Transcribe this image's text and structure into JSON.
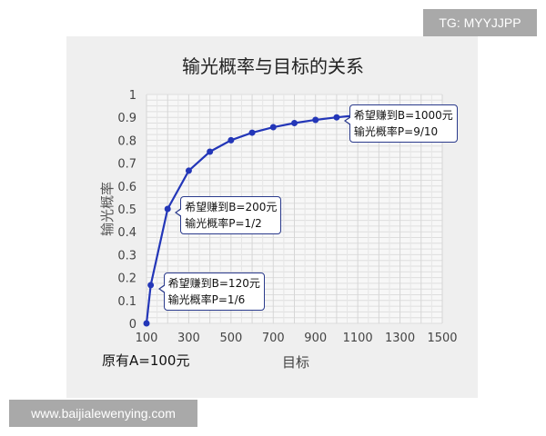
{
  "watermark_top": "TG: MYYJJPP",
  "watermark_bottom": "www.baijialewenying.com",
  "chart_data": {
    "type": "line",
    "title": "输光概率与目标的关系",
    "xlabel": "目标",
    "ylabel": "输光概率",
    "footnote": "原有A=100元",
    "xlim": [
      100,
      1500
    ],
    "ylim": [
      0,
      1
    ],
    "xticks": [
      100,
      300,
      500,
      700,
      900,
      1100,
      1300,
      1500
    ],
    "yticks": [
      0,
      0.1,
      0.2,
      0.3,
      0.4,
      0.5,
      0.6,
      0.7,
      0.8,
      0.9,
      1
    ],
    "grid": true,
    "color": "#2336b8",
    "x": [
      100,
      120,
      200,
      300,
      400,
      500,
      600,
      700,
      800,
      900,
      1000,
      1100,
      1200,
      1300,
      1400,
      1500
    ],
    "y": [
      0,
      0.167,
      0.5,
      0.667,
      0.75,
      0.8,
      0.833,
      0.857,
      0.875,
      0.889,
      0.9,
      0.909,
      0.917,
      0.923,
      0.929,
      0.933
    ],
    "annotations": [
      {
        "x": 120,
        "y": 0.167,
        "line1": "希望赚到B=120元",
        "line2": "输光概率P=1/6"
      },
      {
        "x": 200,
        "y": 0.5,
        "line1": "希望赚到B=200元",
        "line2": "输光概率P=1/2"
      },
      {
        "x": 1000,
        "y": 0.9,
        "line1": "希望赚到B=1000元",
        "line2": "输光概率P=9/10"
      }
    ]
  }
}
